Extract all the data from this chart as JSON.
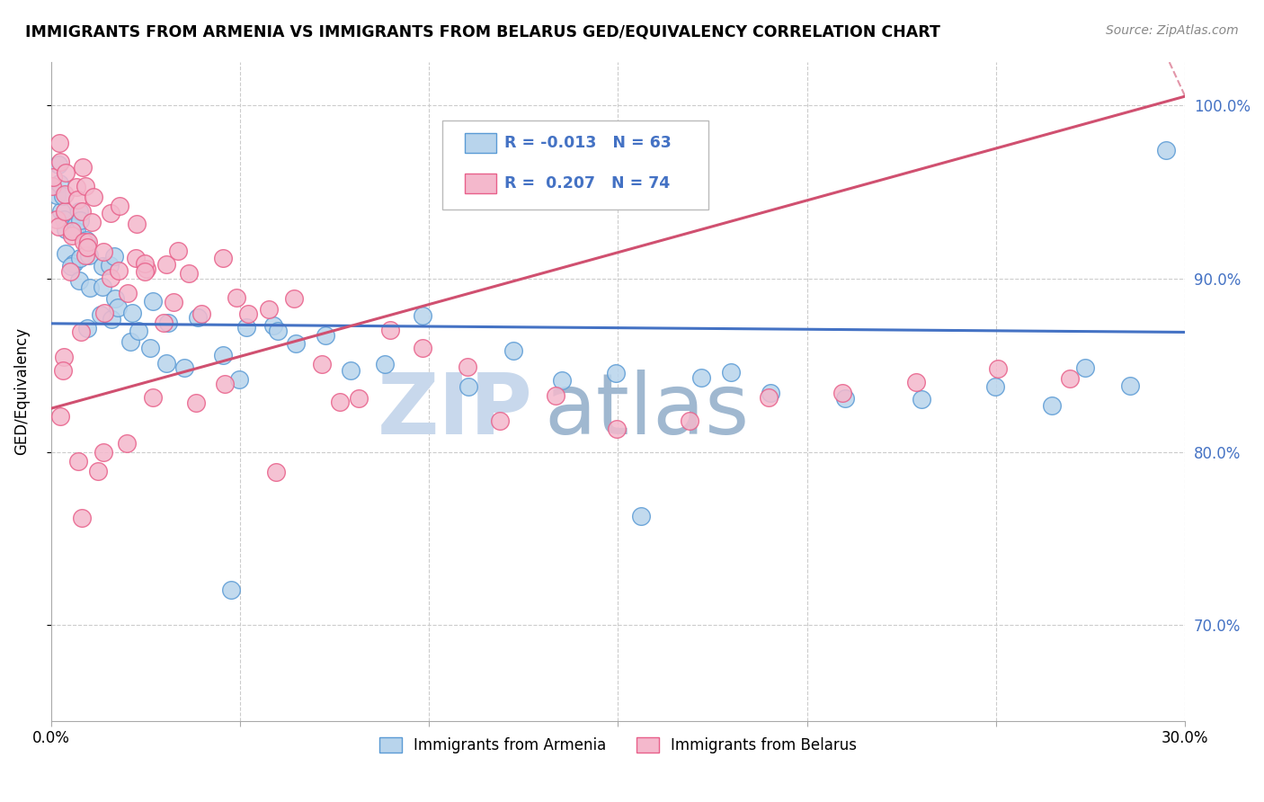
{
  "title": "IMMIGRANTS FROM ARMENIA VS IMMIGRANTS FROM BELARUS GED/EQUIVALENCY CORRELATION CHART",
  "source": "Source: ZipAtlas.com",
  "ylabel": "GED/Equivalency",
  "series": [
    {
      "name": "Immigrants from Armenia",
      "color": "#b8d4ec",
      "edge_color": "#5b9bd5",
      "R": -0.013,
      "N": 63,
      "line_color": "#4472c4",
      "x": [
        0.001,
        0.002,
        0.002,
        0.003,
        0.003,
        0.004,
        0.004,
        0.005,
        0.005,
        0.006,
        0.006,
        0.007,
        0.007,
        0.008,
        0.008,
        0.009,
        0.009,
        0.01,
        0.01,
        0.011,
        0.012,
        0.013,
        0.014,
        0.015,
        0.016,
        0.017,
        0.018,
        0.019,
        0.02,
        0.022,
        0.024,
        0.026,
        0.028,
        0.03,
        0.033,
        0.036,
        0.04,
        0.044,
        0.048,
        0.052,
        0.058,
        0.065,
        0.072,
        0.08,
        0.09,
        0.1,
        0.11,
        0.12,
        0.135,
        0.15,
        0.17,
        0.19,
        0.21,
        0.23,
        0.25,
        0.265,
        0.275,
        0.285,
        0.18,
        0.155,
        0.048,
        0.062,
        0.295
      ],
      "y": [
        0.93,
        0.95,
        0.97,
        0.94,
        0.96,
        0.93,
        0.92,
        0.94,
        0.91,
        0.93,
        0.9,
        0.92,
        0.94,
        0.91,
        0.93,
        0.9,
        0.88,
        0.91,
        0.89,
        0.92,
        0.9,
        0.88,
        0.91,
        0.89,
        0.87,
        0.9,
        0.88,
        0.91,
        0.86,
        0.88,
        0.87,
        0.89,
        0.86,
        0.84,
        0.87,
        0.85,
        0.88,
        0.86,
        0.84,
        0.87,
        0.88,
        0.86,
        0.87,
        0.84,
        0.85,
        0.87,
        0.84,
        0.86,
        0.84,
        0.84,
        0.84,
        0.84,
        0.83,
        0.83,
        0.84,
        0.83,
        0.84,
        0.84,
        0.85,
        0.76,
        0.72,
        0.87,
        0.97
      ]
    },
    {
      "name": "Immigrants from Belarus",
      "color": "#f4b8cc",
      "edge_color": "#e8608a",
      "R": 0.207,
      "N": 74,
      "line_color": "#d05070",
      "x": [
        0.001,
        0.001,
        0.002,
        0.002,
        0.003,
        0.003,
        0.004,
        0.004,
        0.005,
        0.005,
        0.006,
        0.006,
        0.007,
        0.007,
        0.008,
        0.008,
        0.009,
        0.009,
        0.01,
        0.01,
        0.011,
        0.012,
        0.013,
        0.014,
        0.015,
        0.016,
        0.017,
        0.018,
        0.02,
        0.022,
        0.024,
        0.026,
        0.028,
        0.03,
        0.032,
        0.034,
        0.036,
        0.04,
        0.044,
        0.048,
        0.052,
        0.058,
        0.065,
        0.072,
        0.08,
        0.09,
        0.1,
        0.11,
        0.12,
        0.135,
        0.15,
        0.17,
        0.19,
        0.21,
        0.23,
        0.25,
        0.27,
        0.025,
        0.019,
        0.014,
        0.007,
        0.004,
        0.002,
        0.003,
        0.006,
        0.009,
        0.012,
        0.016,
        0.021,
        0.028,
        0.038,
        0.047,
        0.059,
        0.075
      ],
      "y": [
        0.94,
        0.96,
        0.95,
        0.98,
        0.93,
        0.97,
        0.94,
        0.96,
        0.93,
        0.95,
        0.91,
        0.94,
        0.92,
        0.95,
        0.93,
        0.96,
        0.91,
        0.94,
        0.92,
        0.95,
        0.93,
        0.91,
        0.94,
        0.92,
        0.9,
        0.93,
        0.91,
        0.94,
        0.91,
        0.93,
        0.91,
        0.9,
        0.88,
        0.91,
        0.89,
        0.92,
        0.9,
        0.88,
        0.91,
        0.89,
        0.87,
        0.89,
        0.88,
        0.86,
        0.84,
        0.87,
        0.86,
        0.84,
        0.83,
        0.83,
        0.82,
        0.82,
        0.83,
        0.83,
        0.84,
        0.84,
        0.85,
        0.9,
        0.89,
        0.88,
        0.87,
        0.85,
        0.82,
        0.84,
        0.79,
        0.77,
        0.79,
        0.8,
        0.81,
        0.83,
        0.83,
        0.84,
        0.8,
        0.83
      ]
    }
  ],
  "xlim": [
    0.0,
    0.3
  ],
  "ylim": [
    0.645,
    1.025
  ],
  "yticks": [
    0.7,
    0.8,
    0.9,
    1.0
  ],
  "ytick_labels": [
    "70.0%",
    "80.0%",
    "90.0%",
    "100.0%"
  ],
  "grid_color": "#cccccc",
  "background_color": "#ffffff",
  "watermark_left": "ZIP",
  "watermark_right": "atlas",
  "watermark_color": "#c8d8ec",
  "blue_line_y_at_0": 0.874,
  "blue_line_y_at_30": 0.869,
  "pink_line_y_at_0": 0.825,
  "pink_line_y_at_30": 1.005
}
